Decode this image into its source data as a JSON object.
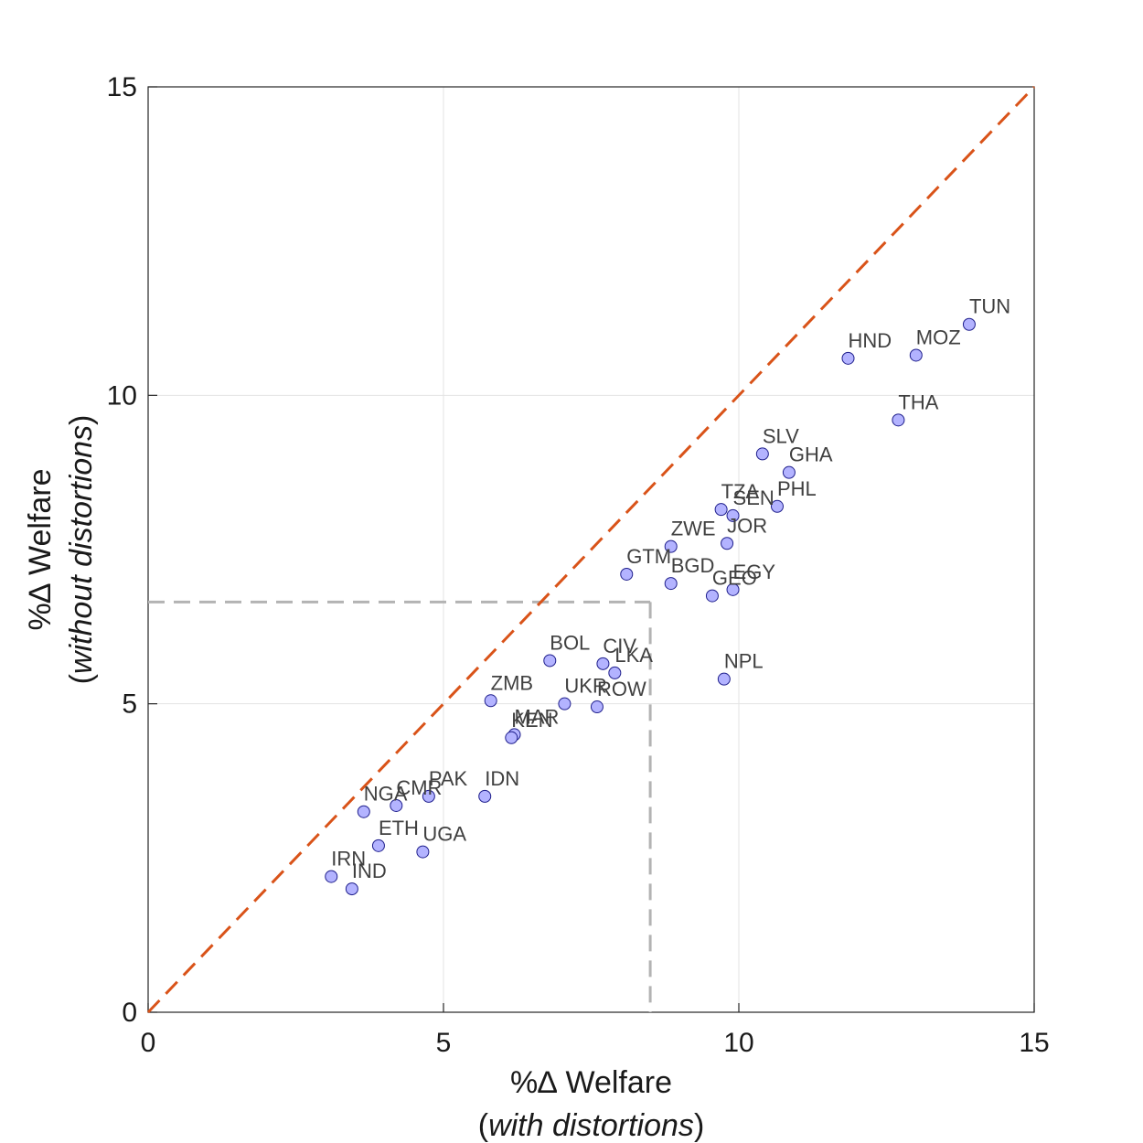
{
  "chart_data": {
    "type": "scatter",
    "title": "",
    "xlabel_line1": "%∆ Welfare",
    "xlabel_line2_prefix": "(",
    "xlabel_line2_italic": "with distortions",
    "xlabel_line2_suffix": ")",
    "ylabel_line1": "%∆ Welfare",
    "ylabel_line2_prefix": "(",
    "ylabel_line2_italic": "without distortions",
    "ylabel_line2_suffix": ")",
    "xlim": [
      0,
      15
    ],
    "ylim": [
      0,
      15
    ],
    "xticks": [
      0,
      5,
      10,
      15
    ],
    "yticks": [
      0,
      5,
      10,
      15
    ],
    "xtick_labels": [
      "0",
      "5",
      "10",
      "15"
    ],
    "ytick_labels": [
      "0",
      "5",
      "10",
      "15"
    ],
    "grid": true,
    "marker_color": "#b3b3ff",
    "marker_edge_color": "#1f1f8c",
    "reference_line": {
      "style": "dashed",
      "color": "#d95319",
      "from": [
        0,
        0
      ],
      "to": [
        15,
        15
      ]
    },
    "mean_guides": {
      "style": "dashed",
      "color": "#b3b3b3",
      "x": 8.5,
      "y": 6.65
    },
    "points": [
      {
        "label": "TUN",
        "x": 13.9,
        "y": 11.15
      },
      {
        "label": "HND",
        "x": 11.85,
        "y": 10.6
      },
      {
        "label": "MOZ",
        "x": 13.0,
        "y": 10.65
      },
      {
        "label": "THA",
        "x": 12.7,
        "y": 9.6
      },
      {
        "label": "SLV",
        "x": 10.4,
        "y": 9.05
      },
      {
        "label": "GHA",
        "x": 10.85,
        "y": 8.75
      },
      {
        "label": "PHL",
        "x": 10.65,
        "y": 8.2
      },
      {
        "label": "TZA",
        "x": 9.7,
        "y": 8.15
      },
      {
        "label": "SEN",
        "x": 9.9,
        "y": 8.05
      },
      {
        "label": "JOR",
        "x": 9.8,
        "y": 7.6
      },
      {
        "label": "ZWE",
        "x": 8.85,
        "y": 7.55
      },
      {
        "label": "GTM",
        "x": 8.1,
        "y": 7.1
      },
      {
        "label": "BGD",
        "x": 8.85,
        "y": 6.95
      },
      {
        "label": "EGY",
        "x": 9.9,
        "y": 6.85
      },
      {
        "label": "GEO",
        "x": 9.55,
        "y": 6.75
      },
      {
        "label": "NPL",
        "x": 9.75,
        "y": 5.4
      },
      {
        "label": "BOL",
        "x": 6.8,
        "y": 5.7
      },
      {
        "label": "CIV",
        "x": 7.7,
        "y": 5.65
      },
      {
        "label": "LKA",
        "x": 7.9,
        "y": 5.5
      },
      {
        "label": "ZMB",
        "x": 5.8,
        "y": 5.05
      },
      {
        "label": "UKR",
        "x": 7.05,
        "y": 5.0
      },
      {
        "label": "ROW",
        "x": 7.6,
        "y": 4.95
      },
      {
        "label": "MAR",
        "x": 6.2,
        "y": 4.5
      },
      {
        "label": "KEN",
        "x": 6.15,
        "y": 4.45
      },
      {
        "label": "IDN",
        "x": 5.7,
        "y": 3.5
      },
      {
        "label": "PAK",
        "x": 4.75,
        "y": 3.5
      },
      {
        "label": "CMR",
        "x": 4.2,
        "y": 3.35
      },
      {
        "label": "NGA",
        "x": 3.65,
        "y": 3.25
      },
      {
        "label": "ETH",
        "x": 3.9,
        "y": 2.7
      },
      {
        "label": "UGA",
        "x": 4.65,
        "y": 2.6
      },
      {
        "label": "IRN",
        "x": 3.1,
        "y": 2.2
      },
      {
        "label": "IND",
        "x": 3.45,
        "y": 2.0
      }
    ]
  }
}
